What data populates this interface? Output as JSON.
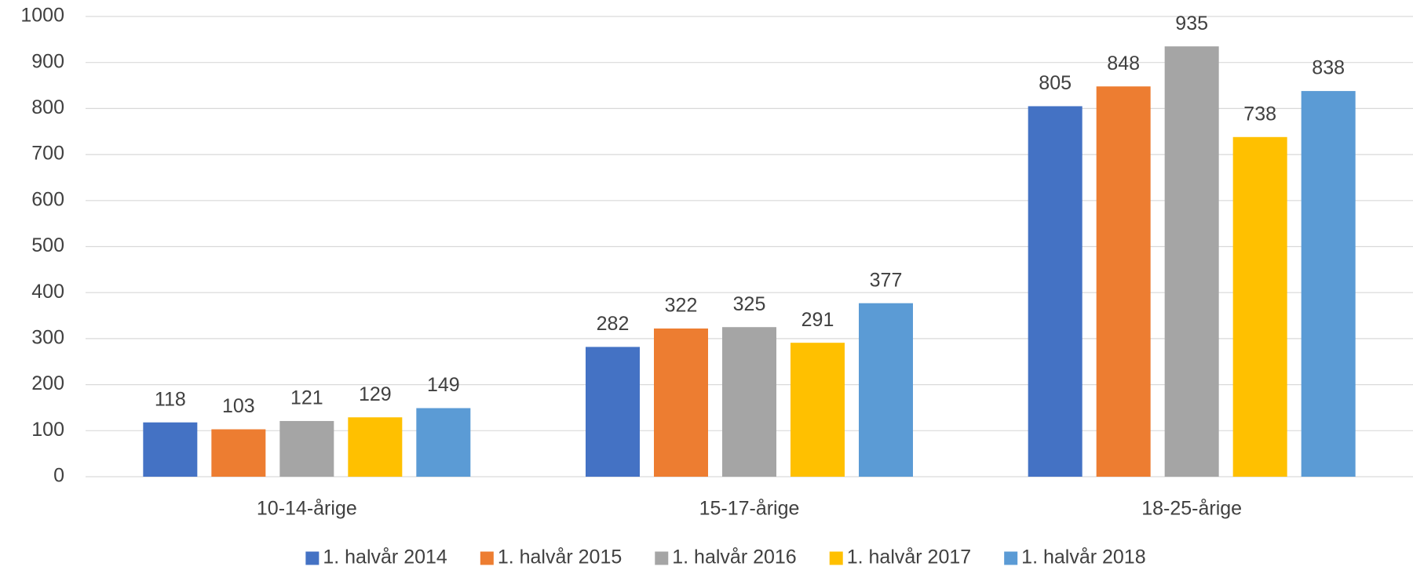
{
  "chart_data": {
    "type": "bar",
    "categories": [
      "10-14-årige",
      "15-17-årige",
      "18-25-årige"
    ],
    "series": [
      {
        "name": "1. halvår 2014",
        "color": "#4472c4",
        "values": [
          118,
          282,
          805
        ]
      },
      {
        "name": "1. halvår 2015",
        "color": "#ed7d31",
        "values": [
          103,
          322,
          848
        ]
      },
      {
        "name": "1. halvår 2016",
        "color": "#a5a5a5",
        "values": [
          121,
          325,
          935
        ]
      },
      {
        "name": "1. halvår 2017",
        "color": "#ffc000",
        "values": [
          129,
          291,
          738
        ]
      },
      {
        "name": "1. halvår 2018",
        "color": "#5b9bd5",
        "values": [
          149,
          377,
          838
        ]
      }
    ],
    "ylim": [
      0,
      1000
    ],
    "yticks": [
      0,
      100,
      200,
      300,
      400,
      500,
      600,
      700,
      800,
      900,
      1000
    ],
    "grid": true,
    "legend": "bottom"
  }
}
